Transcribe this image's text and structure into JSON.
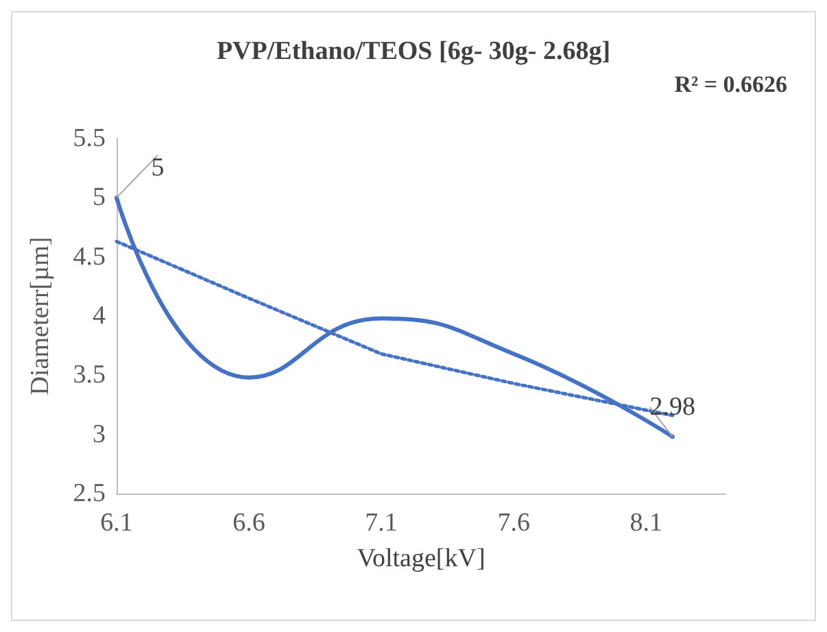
{
  "chart_data": {
    "type": "line",
    "title": "PVP/Ethano/TEOS [6g- 30g- 2.68g]",
    "xlabel": "Voltage[kV]",
    "ylabel": "Diameterr[µm]",
    "annotations": [
      "R² = 0.6626"
    ],
    "xlim": [
      6.1,
      8.4
    ],
    "xticks": [
      6.1,
      6.6,
      7.1,
      7.6,
      8.1
    ],
    "ylim": [
      2.5,
      5.5
    ],
    "yticks": [
      2.5,
      3,
      3.5,
      4,
      4.5,
      5,
      5.5
    ],
    "grid": false,
    "series": [
      {
        "color": "#4472c4",
        "x": [
          6.1,
          6.6,
          7.1,
          7.6,
          8.2
        ],
        "values": [
          5,
          3.48,
          3.98,
          3.68,
          2.98
        ],
        "value_labels": [
          "5",
          null,
          null,
          null,
          "2.98"
        ],
        "line_style": "solid"
      },
      {
        "color": "#4472c4",
        "x": [
          6.1,
          6.6,
          7.1,
          7.6,
          8.2
        ],
        "values": [
          4.63,
          4.15,
          3.68,
          3.43,
          3.16
        ],
        "line_style": "dotted"
      }
    ]
  }
}
